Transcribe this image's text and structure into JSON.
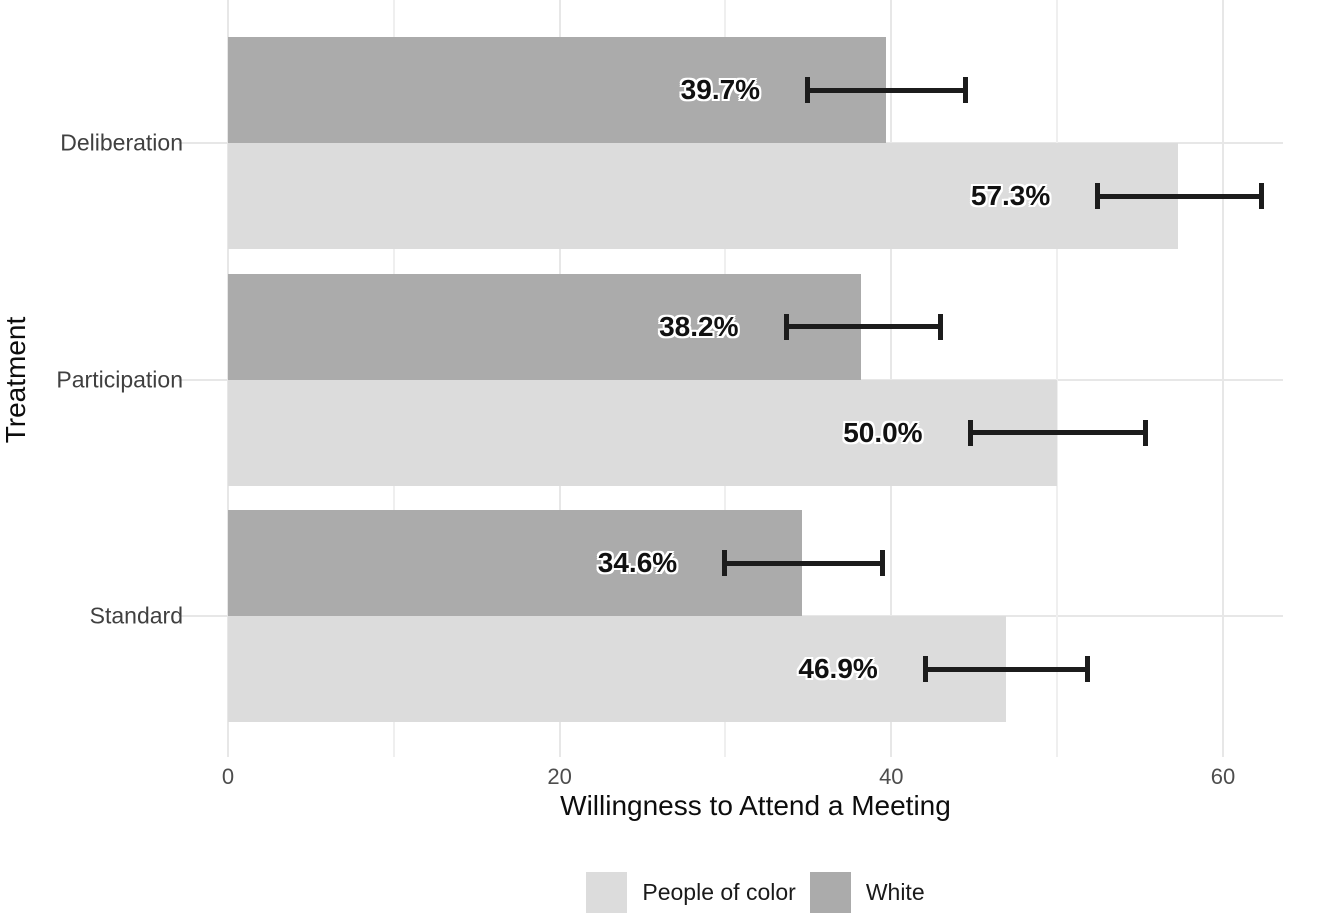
{
  "chart_data": {
    "type": "bar",
    "orientation": "horizontal",
    "title": "",
    "xlabel": "Willingness to Attend a Meeting",
    "ylabel": "Treatment",
    "categories": [
      "Deliberation",
      "Participation",
      "Standard"
    ],
    "series": [
      {
        "name": "White",
        "color": "#ababab",
        "values": [
          39.7,
          38.2,
          34.6
        ],
        "labels": [
          "39.7%",
          "38.2%",
          "34.6%"
        ],
        "ci_low": [
          34.8,
          33.5,
          29.8
        ],
        "ci_high": [
          44.6,
          43.1,
          39.6
        ]
      },
      {
        "name": "People of color",
        "color": "#dcdcdc",
        "values": [
          57.3,
          50.0,
          46.9
        ],
        "labels": [
          "57.3%",
          "50.0%",
          "46.9%"
        ],
        "ci_low": [
          52.3,
          44.6,
          41.9
        ],
        "ci_high": [
          62.5,
          55.5,
          52.0
        ]
      }
    ],
    "x_ticks": [
      0,
      20,
      40,
      60
    ],
    "x_minor_ticks": [
      10,
      30,
      50
    ],
    "xlim": [
      0,
      63.6
    ],
    "grid": true,
    "legend_position": "bottom",
    "legend": [
      {
        "label": "People of color",
        "color": "#dcdcdc"
      },
      {
        "label": "White",
        "color": "#ababab"
      }
    ],
    "error_bar_color": "#1c1c1c",
    "background_color": "#ffffff",
    "gridline_color": "#e7e7e7"
  }
}
